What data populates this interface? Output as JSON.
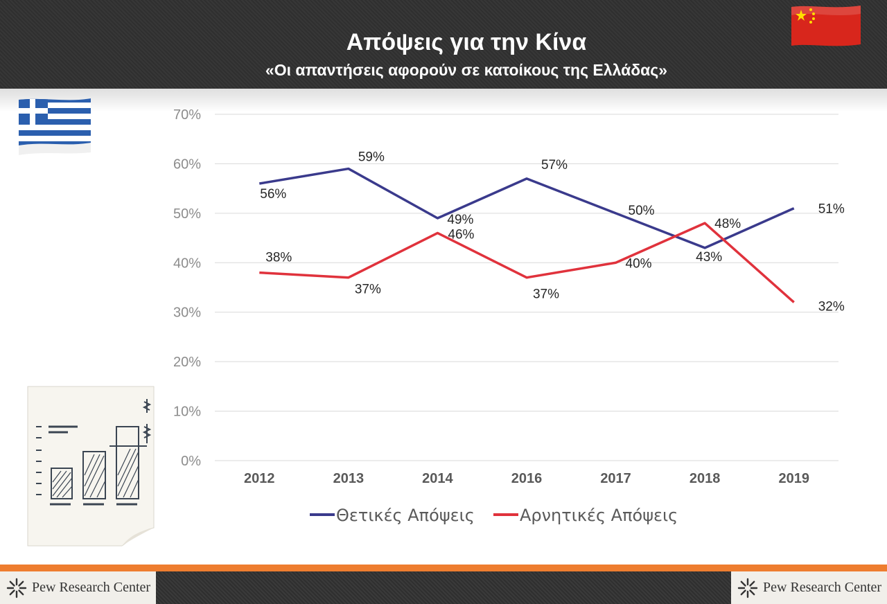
{
  "header": {
    "title": "Απόψεις για την Κίνα",
    "subtitle": "«Οι απαντήσεις αφορούν σε κατοίκους της Ελλάδας»"
  },
  "footer": {
    "left_logo": "Pew Research Center",
    "right_logo": "Pew Research Center"
  },
  "icons": [
    "china-flag-icon",
    "greece-flag-icon",
    "bar-chart-sketch-icon",
    "pew-logo-icon"
  ],
  "chart_data": {
    "type": "line",
    "categories": [
      "2012",
      "2013",
      "2014",
      "2016",
      "2017",
      "2018",
      "2019"
    ],
    "ylim": [
      0,
      70
    ],
    "yticks": [
      "0%",
      "10%",
      "20%",
      "30%",
      "40%",
      "50%",
      "60%",
      "70%"
    ],
    "grid": true,
    "legend_position": "bottom",
    "series": [
      {
        "name": "Θετικές Απόψεις",
        "color": "#3a3a8c",
        "values": [
          56,
          59,
          49,
          57,
          50,
          43,
          51
        ],
        "labels": [
          "56%",
          "59%",
          "49%",
          "57%",
          "50%",
          "43%",
          "51%"
        ]
      },
      {
        "name": "Αρνητικές Απόψεις",
        "color": "#e0323c",
        "values": [
          38,
          37,
          46,
          37,
          40,
          48,
          32
        ],
        "labels": [
          "38%",
          "37%",
          "46%",
          "37%",
          "40%",
          "48%",
          "32%"
        ]
      }
    ]
  }
}
